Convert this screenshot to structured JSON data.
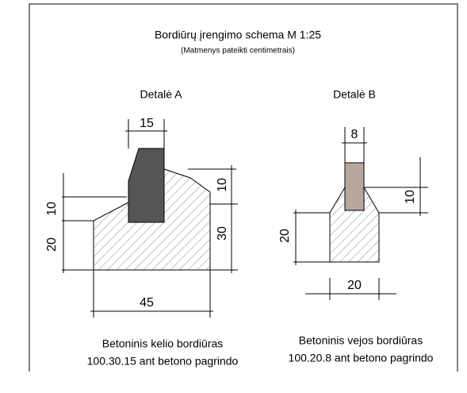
{
  "header": {
    "title": "Bordiūrų įrengimo schema M 1:25",
    "subtitle": "(Matmenys pateikti centimetrais)"
  },
  "details": [
    {
      "label": "Detalė A",
      "dimensions": {
        "top": "15",
        "left_upper": "10",
        "left_lower": "20",
        "right_upper": "10",
        "right_lower": "30",
        "bottom": "45"
      },
      "caption": [
        "Betoninis kelio bordiūras",
        "100.30.15 ant betono pagrindo"
      ]
    },
    {
      "label": "Detalė B",
      "dimensions": {
        "top": "8",
        "right": "10",
        "left": "20",
        "bottom": "20"
      },
      "caption": [
        "Betoninis vejos bordiūras",
        "100.20.8 ant betono pagrindo"
      ]
    }
  ]
}
